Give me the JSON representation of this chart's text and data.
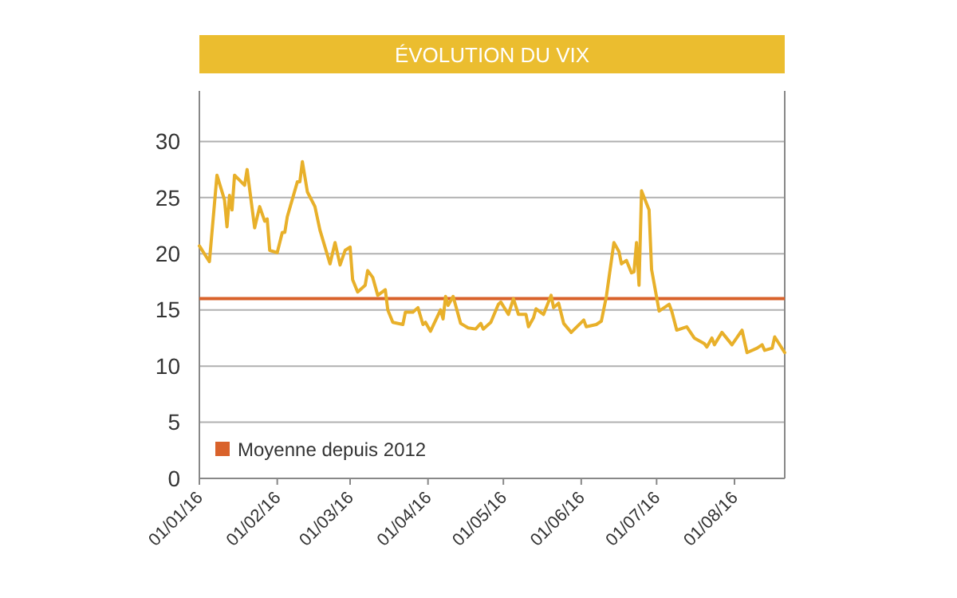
{
  "chart_data": {
    "type": "line",
    "title": "ÉVOLUTION DU VIX",
    "x": [
      "2016-01-01",
      "2016-01-05",
      "2016-01-08",
      "2016-01-11",
      "2016-01-12",
      "2016-01-13",
      "2016-01-14",
      "2016-01-15",
      "2016-01-19",
      "2016-01-20",
      "2016-01-23",
      "2016-01-25",
      "2016-01-27",
      "2016-01-28",
      "2016-01-29",
      "2016-02-01",
      "2016-02-03",
      "2016-02-04",
      "2016-02-05",
      "2016-02-09",
      "2016-02-10",
      "2016-02-11",
      "2016-02-13",
      "2016-02-16",
      "2016-02-18",
      "2016-02-22",
      "2016-02-24",
      "2016-02-26",
      "2016-02-28",
      "2016-03-01",
      "2016-03-02",
      "2016-03-04",
      "2016-03-07",
      "2016-03-08",
      "2016-03-10",
      "2016-03-12",
      "2016-03-15",
      "2016-03-16",
      "2016-03-18",
      "2016-03-22",
      "2016-03-23",
      "2016-03-26",
      "2016-03-28",
      "2016-03-30",
      "2016-03-31",
      "2016-04-02",
      "2016-04-06",
      "2016-04-07",
      "2016-04-08",
      "2016-04-09",
      "2016-04-11",
      "2016-04-14",
      "2016-04-17",
      "2016-04-20",
      "2016-04-22",
      "2016-04-23",
      "2016-04-26",
      "2016-04-29",
      "2016-04-30",
      "2016-05-03",
      "2016-05-05",
      "2016-05-07",
      "2016-05-10",
      "2016-05-11",
      "2016-05-13",
      "2016-05-14",
      "2016-05-17",
      "2016-05-20",
      "2016-05-21",
      "2016-05-23",
      "2016-05-25",
      "2016-05-28",
      "2016-06-02",
      "2016-06-03",
      "2016-06-07",
      "2016-06-09",
      "2016-06-11",
      "2016-06-14",
      "2016-06-16",
      "2016-06-17",
      "2016-06-19",
      "2016-06-21",
      "2016-06-22",
      "2016-06-23",
      "2016-06-24",
      "2016-06-25",
      "2016-06-28",
      "2016-06-29",
      "2016-07-02",
      "2016-07-06",
      "2016-07-07",
      "2016-07-09",
      "2016-07-13",
      "2016-07-16",
      "2016-07-20",
      "2016-07-21",
      "2016-07-23",
      "2016-07-24",
      "2016-07-27",
      "2016-07-31",
      "2016-08-04",
      "2016-08-06",
      "2016-08-10",
      "2016-08-12",
      "2016-08-13",
      "2016-08-16",
      "2016-08-17",
      "2016-08-21"
    ],
    "series": [
      {
        "color": "#e8b02a",
        "values": [
          20.7,
          19.3,
          27.0,
          24.8,
          22.4,
          25.2,
          23.9,
          27.0,
          26.1,
          27.5,
          22.3,
          24.2,
          22.9,
          23.1,
          20.3,
          20.1,
          21.9,
          21.9,
          23.3,
          26.4,
          26.4,
          28.2,
          25.5,
          24.2,
          22.1,
          19.1,
          21.0,
          19.0,
          20.3,
          20.6,
          17.7,
          16.6,
          17.2,
          18.5,
          17.9,
          16.3,
          16.8,
          15.0,
          13.9,
          13.7,
          14.8,
          14.8,
          15.2,
          13.7,
          13.9,
          13.1,
          15.0,
          14.2,
          16.2,
          15.4,
          16.2,
          13.8,
          13.4,
          13.3,
          13.8,
          13.3,
          13.9,
          15.5,
          15.7,
          14.6,
          16.0,
          14.6,
          14.6,
          13.5,
          14.3,
          15.1,
          14.6,
          16.3,
          15.2,
          15.6,
          13.8,
          13.0,
          14.1,
          13.5,
          13.7,
          14.0,
          16.2,
          21.0,
          20.2,
          19.1,
          19.4,
          18.3,
          18.4,
          21.0,
          17.2,
          25.6,
          23.9,
          18.6,
          14.9,
          15.5,
          14.9,
          13.2,
          13.5,
          12.5,
          12.0,
          11.7,
          12.5,
          11.9,
          13.0,
          11.9,
          13.2,
          11.2,
          11.6,
          11.9,
          11.4,
          11.6,
          12.6,
          11.2
        ]
      }
    ],
    "xlim": [
      "2016-01-01",
      "2016-08-21"
    ],
    "xticks": [
      {
        "value": "2016-01-01",
        "label": "01/01/16"
      },
      {
        "value": "2016-02-01",
        "label": "01/02/16"
      },
      {
        "value": "2016-03-01",
        "label": "01/03/16"
      },
      {
        "value": "2016-04-01",
        "label": "01/04/16"
      },
      {
        "value": "2016-05-01",
        "label": "01/05/16"
      },
      {
        "value": "2016-06-01",
        "label": "01/06/16"
      },
      {
        "value": "2016-07-01",
        "label": "01/07/16"
      },
      {
        "value": "2016-08-01",
        "label": "01/08/16"
      }
    ],
    "ylim": [
      0,
      34.5
    ],
    "yticks": [
      0,
      5,
      10,
      15,
      20,
      25,
      30
    ],
    "grid": "y",
    "ref_lines": [
      {
        "axis": "y",
        "value": 16,
        "label": "Moyenne depuis 2012",
        "color": "#d9622b"
      }
    ],
    "legend": "bottom left",
    "line_style": "solid",
    "marker": "none"
  }
}
